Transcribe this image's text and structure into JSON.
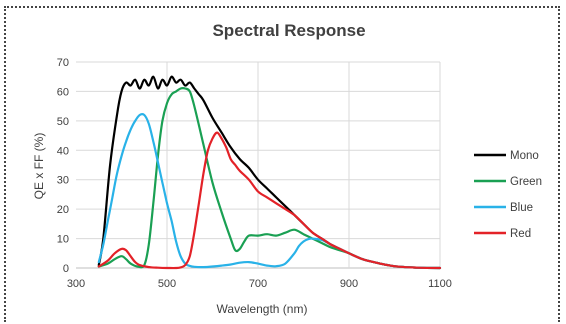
{
  "chart_data": {
    "type": "line",
    "title": "Spectral Response",
    "xlabel": "Wavelength (nm)",
    "ylabel": "QE x FF (%)",
    "xlim": [
      300,
      1100
    ],
    "ylim": [
      0,
      70
    ],
    "xticks": [
      300,
      500,
      700,
      900,
      1100
    ],
    "yticks": [
      0,
      10,
      20,
      30,
      40,
      50,
      60,
      70
    ],
    "grid": true,
    "legend_position": "right",
    "series": [
      {
        "name": "Mono",
        "color": "#000000",
        "x": [
          350,
          360,
          375,
          390,
          400,
          410,
          420,
          430,
          440,
          450,
          460,
          470,
          480,
          490,
          500,
          510,
          520,
          530,
          540,
          550,
          560,
          570,
          580,
          600,
          620,
          640,
          660,
          680,
          700,
          720,
          740,
          760,
          780,
          800,
          820,
          840,
          860,
          880,
          900,
          930,
          960,
          1000,
          1050,
          1100
        ],
        "y": [
          1,
          10,
          35,
          52,
          60,
          63,
          62,
          64,
          61,
          64,
          62,
          65,
          61,
          64,
          62,
          65,
          63,
          64,
          62,
          63,
          61,
          59,
          57,
          51,
          46,
          41,
          37,
          34,
          30,
          27,
          24,
          21,
          18,
          15,
          12,
          10,
          8,
          6.5,
          5,
          3,
          1.8,
          0.6,
          0.1,
          0
        ]
      },
      {
        "name": "Green",
        "color": "#1aa053",
        "x": [
          350,
          370,
          385,
          400,
          410,
          420,
          435,
          450,
          460,
          470,
          480,
          490,
          500,
          510,
          520,
          530,
          540,
          550,
          560,
          580,
          600,
          620,
          640,
          650,
          660,
          670,
          680,
          700,
          720,
          740,
          760,
          780,
          800,
          820,
          840,
          860,
          880,
          900,
          930,
          960,
          1000,
          1050,
          1100
        ],
        "y": [
          0.5,
          1.5,
          3,
          4,
          3,
          1.5,
          0.5,
          1,
          8,
          22,
          38,
          50,
          56,
          59,
          60,
          61,
          61,
          60,
          55,
          42,
          29,
          19,
          10,
          6,
          6.5,
          9,
          11,
          11,
          11.5,
          11,
          12,
          13,
          11.5,
          10,
          8.5,
          7,
          6,
          5,
          3,
          1.8,
          0.6,
          0.1,
          0
        ]
      },
      {
        "name": "Blue",
        "color": "#29b2e8",
        "x": [
          350,
          360,
          370,
          380,
          390,
          400,
          410,
          420,
          430,
          440,
          450,
          460,
          470,
          480,
          490,
          500,
          510,
          520,
          530,
          540,
          550,
          560,
          580,
          600,
          620,
          640,
          660,
          680,
          700,
          720,
          740,
          760,
          780,
          790,
          800,
          810,
          820,
          840,
          860,
          880,
          900,
          930,
          960,
          1000,
          1050,
          1100
        ],
        "y": [
          2,
          8,
          16,
          24,
          32,
          38,
          43,
          47,
          50,
          52,
          52,
          49,
          43,
          36,
          29,
          22,
          16,
          9,
          4,
          1.5,
          0.7,
          0.4,
          0.3,
          0.5,
          0.8,
          1.2,
          1.8,
          2,
          1.5,
          0.8,
          0.6,
          1.5,
          5,
          7.5,
          9,
          9.8,
          10,
          9.5,
          8,
          6.5,
          5,
          3,
          1.8,
          0.6,
          0.1,
          0
        ]
      },
      {
        "name": "Red",
        "color": "#e32228",
        "x": [
          350,
          370,
          385,
          400,
          410,
          420,
          430,
          440,
          460,
          480,
          500,
          520,
          530,
          540,
          550,
          560,
          570,
          580,
          590,
          600,
          610,
          620,
          630,
          640,
          650,
          660,
          680,
          700,
          720,
          740,
          760,
          780,
          800,
          820,
          840,
          860,
          880,
          900,
          930,
          960,
          1000,
          1050,
          1100
        ],
        "y": [
          0.5,
          2.5,
          5,
          6.5,
          6,
          4,
          2,
          1,
          0.3,
          0.1,
          0,
          0,
          0.2,
          1,
          4,
          12,
          22,
          32,
          40,
          44,
          46,
          44,
          41,
          37,
          35,
          33,
          30,
          26,
          24,
          22,
          20,
          18,
          15,
          12,
          10,
          8,
          6.5,
          5,
          3,
          1.8,
          0.6,
          0.1,
          0
        ]
      }
    ]
  }
}
